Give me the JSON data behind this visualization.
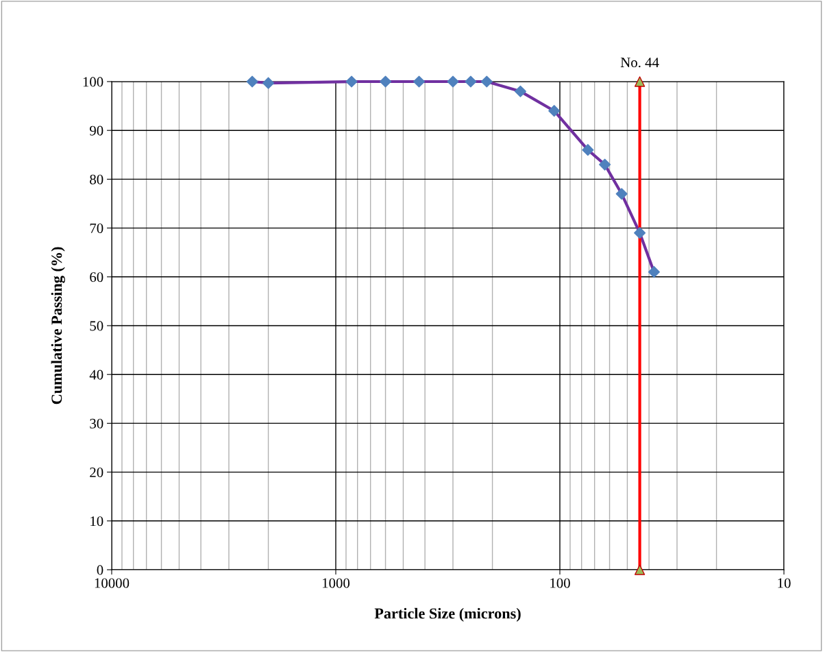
{
  "chart_data": {
    "type": "line",
    "xlabel": "Particle Size (microns)",
    "ylabel": "Cumulative Passing (%)",
    "log": "x",
    "grid": true,
    "xlim": [
      10000,
      10
    ],
    "xticks": [
      10000,
      1000,
      100,
      10
    ],
    "ylim": [
      0,
      100
    ],
    "yticks": [
      0,
      10,
      20,
      30,
      40,
      50,
      60,
      70,
      80,
      90,
      100
    ],
    "series": [
      {
        "color": "#7030a0",
        "marker": "diamond",
        "colors": [
          "#4f81bd",
          "#4f81bd",
          "#4f81bd",
          "#4f81bd",
          "#4f81bd",
          "#4f81bd",
          "#4f81bd",
          "#4f81bd",
          "#4f81bd",
          "#4f81bd",
          "#4f81bd",
          "#4f81bd",
          "#4f81bd",
          "#4f81bd",
          "#4f81bd"
        ],
        "x": [
          2360,
          2000,
          850,
          600,
          425,
          300,
          250,
          212,
          150,
          106,
          75,
          63,
          53,
          44,
          38
        ],
        "values": [
          100,
          99.7,
          100,
          100,
          100,
          100,
          100,
          100,
          98,
          94,
          86,
          83,
          77,
          69,
          61
        ]
      },
      {
        "color": "#ff0000",
        "marker": "triangle",
        "colors": [
          "#9bbb59",
          "#9bbb59"
        ],
        "x": [
          44,
          44
        ],
        "values": [
          0,
          100
        ]
      }
    ],
    "annotations": [
      {
        "text": "No. 44",
        "x": 44,
        "y": 100
      }
    ]
  }
}
